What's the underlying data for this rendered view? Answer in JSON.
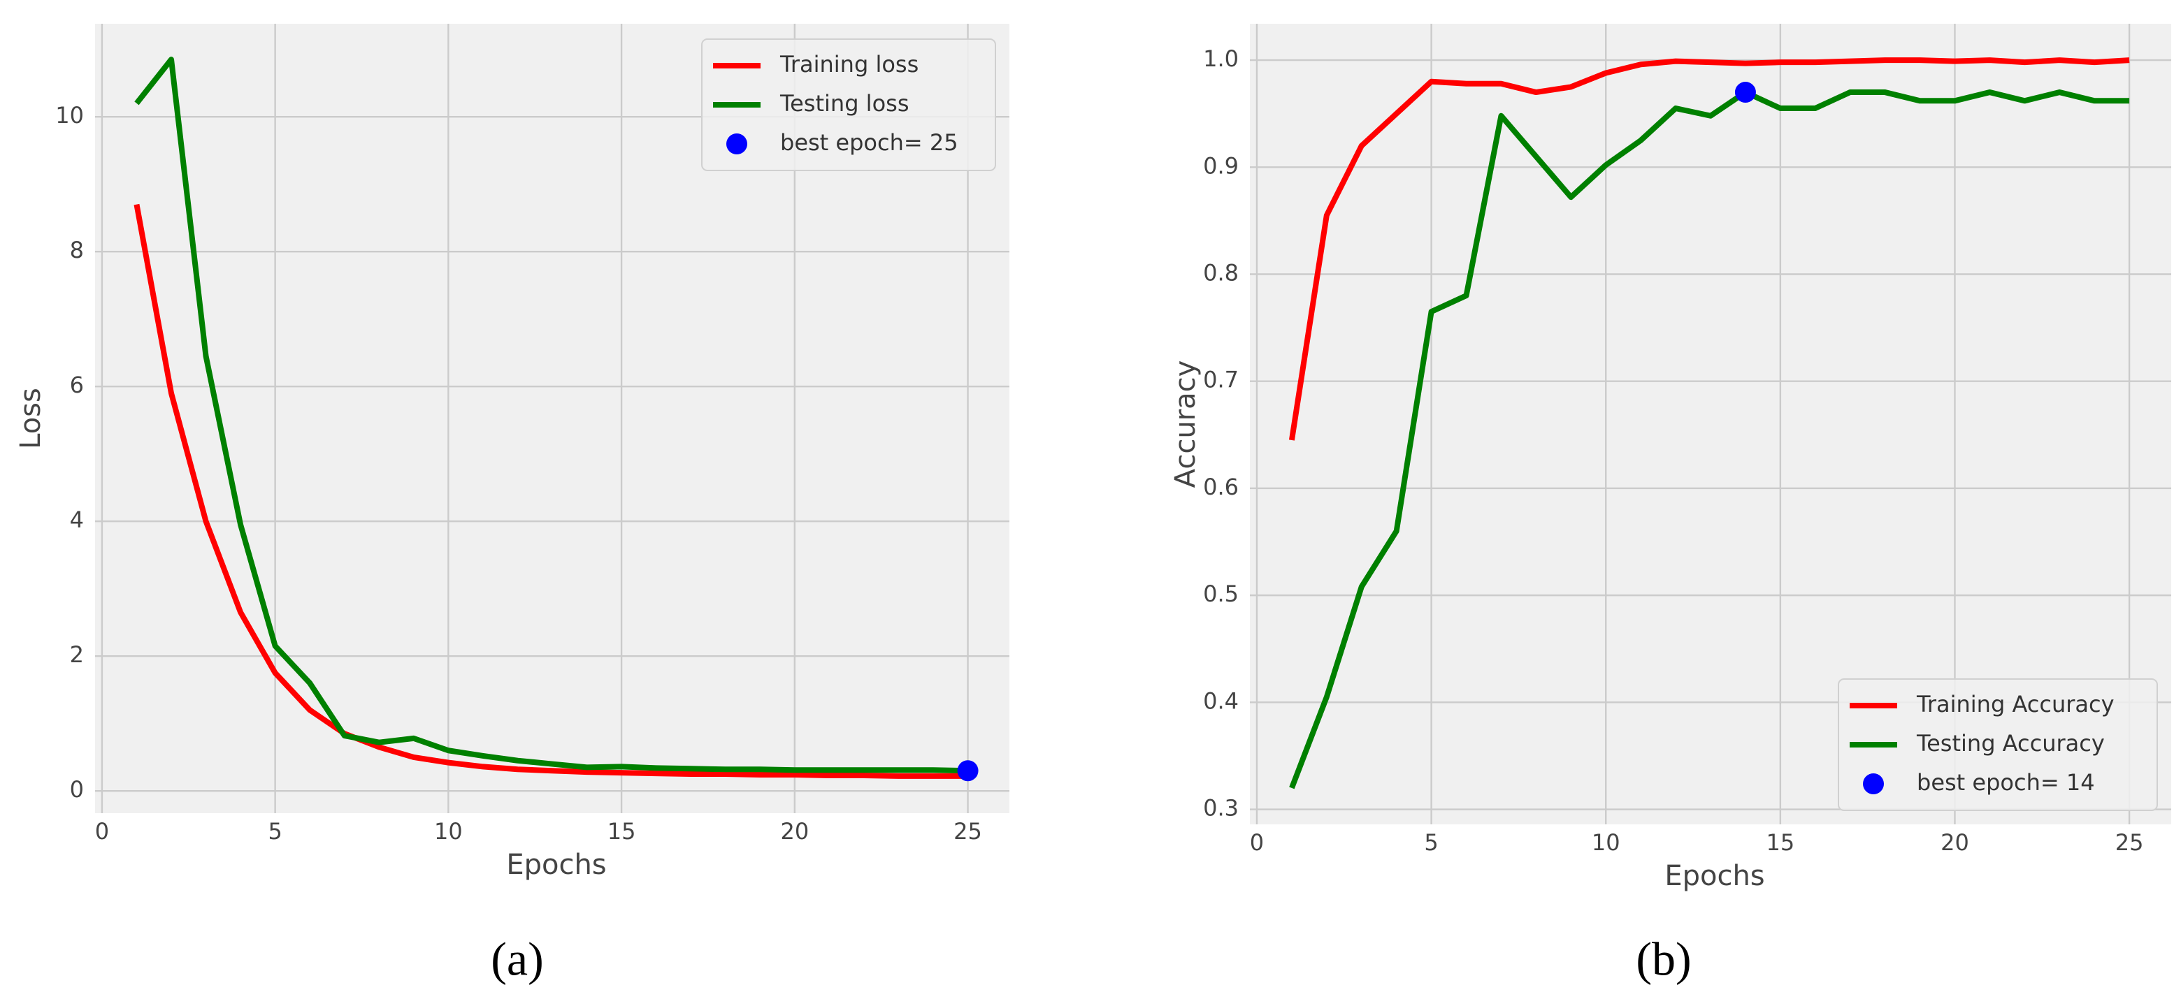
{
  "chart_data": [
    {
      "type": "line",
      "caption": "(a)",
      "xlabel": "Epochs",
      "ylabel": "Loss",
      "x": [
        1,
        2,
        3,
        4,
        5,
        6,
        7,
        8,
        9,
        10,
        11,
        12,
        13,
        14,
        15,
        16,
        17,
        18,
        19,
        20,
        21,
        22,
        23,
        24,
        25
      ],
      "series": [
        {
          "name": "Training loss",
          "color": "#ff0000",
          "values": [
            8.7,
            5.9,
            4.0,
            2.65,
            1.75,
            1.2,
            0.85,
            0.65,
            0.5,
            0.42,
            0.36,
            0.32,
            0.3,
            0.28,
            0.27,
            0.26,
            0.25,
            0.25,
            0.24,
            0.24,
            0.23,
            0.23,
            0.22,
            0.22,
            0.22
          ]
        },
        {
          "name": "Testing loss",
          "color": "#008000",
          "values": [
            10.2,
            10.85,
            6.45,
            3.95,
            2.15,
            1.6,
            0.82,
            0.72,
            0.78,
            0.6,
            0.52,
            0.45,
            0.4,
            0.35,
            0.36,
            0.34,
            0.33,
            0.32,
            0.32,
            0.31,
            0.31,
            0.31,
            0.31,
            0.31,
            0.3
          ]
        }
      ],
      "marker": {
        "name": "best epoch= 25",
        "color": "#0000ff",
        "x": [
          25
        ],
        "values": [
          0.3
        ]
      },
      "xlim": [
        -0.2,
        26.2
      ],
      "xticks": [
        0,
        5,
        10,
        15,
        20,
        25
      ],
      "ylim": [
        -0.33,
        11.38
      ],
      "yticks": [
        0,
        2,
        4,
        6,
        8,
        10
      ],
      "grid": true,
      "legend": "upper right"
    },
    {
      "type": "line",
      "caption": "(b)",
      "xlabel": "Epochs",
      "ylabel": "Accuracy",
      "x": [
        1,
        2,
        3,
        4,
        5,
        6,
        7,
        8,
        9,
        10,
        11,
        12,
        13,
        14,
        15,
        16,
        17,
        18,
        19,
        20,
        21,
        22,
        23,
        24,
        25
      ],
      "series": [
        {
          "name": "Training Accuracy",
          "color": "#ff0000",
          "values": [
            0.645,
            0.855,
            0.92,
            0.95,
            0.98,
            0.978,
            0.978,
            0.97,
            0.975,
            0.988,
            0.996,
            0.999,
            0.998,
            0.997,
            0.998,
            0.998,
            0.999,
            1.0,
            1.0,
            0.999,
            1.0,
            0.998,
            1.0,
            0.998,
            1.0
          ]
        },
        {
          "name": "Testing Accuracy",
          "color": "#008000",
          "values": [
            0.32,
            0.405,
            0.508,
            0.56,
            0.765,
            0.78,
            0.948,
            0.91,
            0.872,
            0.902,
            0.925,
            0.955,
            0.948,
            0.97,
            0.955,
            0.955,
            0.97,
            0.97,
            0.962,
            0.962,
            0.97,
            0.962,
            0.97,
            0.962,
            0.962
          ]
        }
      ],
      "marker": {
        "name": "best epoch= 14",
        "color": "#0000ff",
        "x": [
          14
        ],
        "values": [
          0.97
        ]
      },
      "xlim": [
        -0.2,
        26.2
      ],
      "xticks": [
        0,
        5,
        10,
        15,
        20,
        25
      ],
      "ylim": [
        0.286,
        1.034
      ],
      "yticks": [
        0.3,
        0.4,
        0.5,
        0.6,
        0.7,
        0.8,
        0.9,
        {
          "value": 1,
          "label": "1.0"
        }
      ],
      "grid": true,
      "legend": "lower right"
    }
  ]
}
